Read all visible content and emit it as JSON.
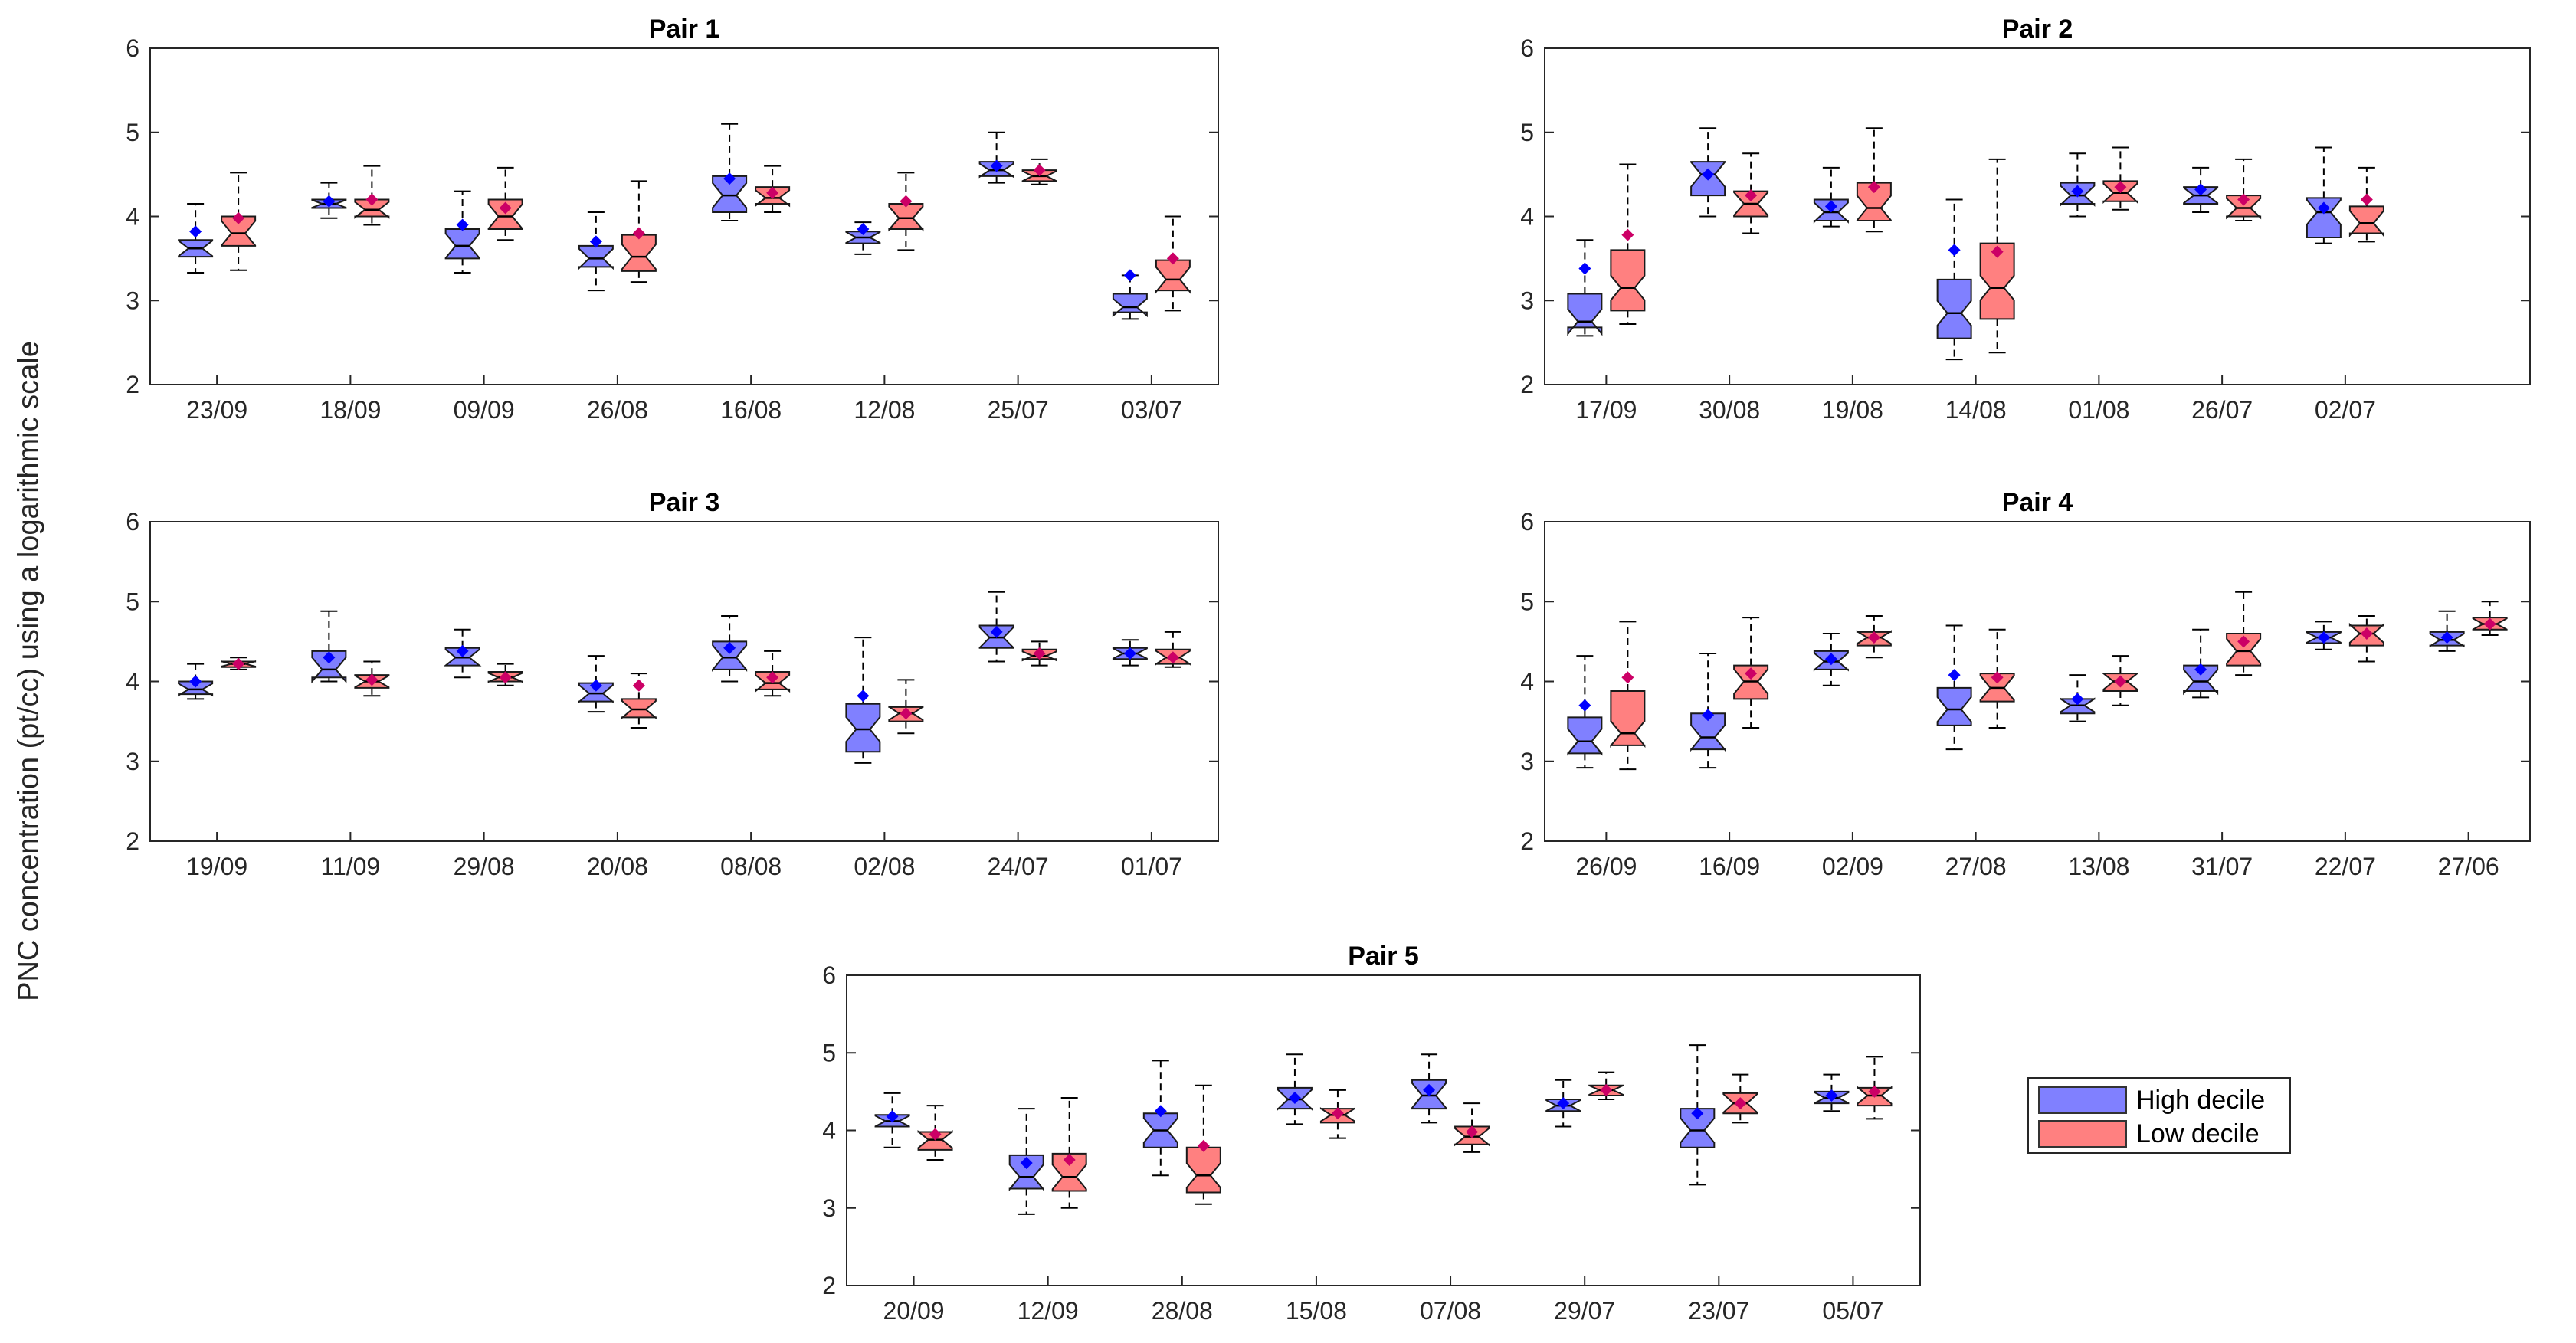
{
  "figure": {
    "ylabel": "PNC concentration (pt/cc) using a logarithmic scale"
  },
  "colors": {
    "high": "#8080ff",
    "low": "#ff8080",
    "high_mean": "#0000ff",
    "low_mean": "#cc0066"
  },
  "legend": {
    "high_label": "High decile",
    "low_label": "Low decile"
  },
  "chart_data": [
    {
      "type": "box",
      "title": "Pair 1",
      "ylim": [
        2,
        6
      ],
      "yticks": [
        "2",
        "3",
        "4",
        "5",
        "6"
      ],
      "categories": [
        "23/09",
        "18/09",
        "09/09",
        "26/08",
        "16/08",
        "12/08",
        "25/07",
        "03/07"
      ],
      "series": [
        {
          "name": "High decile",
          "boxes": [
            {
              "low": 3.33,
              "q1": 3.52,
              "median": 3.62,
              "q3": 3.72,
              "high": 4.15,
              "mean": 3.82
            },
            {
              "low": 3.98,
              "q1": 4.1,
              "median": 4.15,
              "q3": 4.2,
              "high": 4.4,
              "mean": 4.18
            },
            {
              "low": 3.33,
              "q1": 3.5,
              "median": 3.65,
              "q3": 3.85,
              "high": 4.3,
              "mean": 3.9
            },
            {
              "low": 3.12,
              "q1": 3.4,
              "median": 3.5,
              "q3": 3.65,
              "high": 4.05,
              "mean": 3.7
            },
            {
              "low": 3.95,
              "q1": 4.05,
              "median": 4.25,
              "q3": 4.48,
              "high": 5.1,
              "mean": 4.45
            },
            {
              "low": 3.55,
              "q1": 3.68,
              "median": 3.75,
              "q3": 3.82,
              "high": 3.93,
              "mean": 3.85
            },
            {
              "low": 4.4,
              "q1": 4.48,
              "median": 4.55,
              "q3": 4.65,
              "high": 5.0,
              "mean": 4.6
            },
            {
              "low": 2.78,
              "q1": 2.86,
              "median": 2.92,
              "q3": 3.08,
              "high": 3.3,
              "mean": 3.3
            }
          ]
        },
        {
          "name": "Low decile",
          "boxes": [
            {
              "low": 3.36,
              "q1": 3.65,
              "median": 3.8,
              "q3": 4.0,
              "high": 4.52,
              "mean": 3.98
            },
            {
              "low": 3.9,
              "q1": 4.0,
              "median": 4.08,
              "q3": 4.2,
              "high": 4.6,
              "mean": 4.2
            },
            {
              "low": 3.72,
              "q1": 3.85,
              "median": 4.0,
              "q3": 4.2,
              "high": 4.58,
              "mean": 4.1
            },
            {
              "low": 3.22,
              "q1": 3.35,
              "median": 3.52,
              "q3": 3.78,
              "high": 4.42,
              "mean": 3.8
            },
            {
              "low": 4.05,
              "q1": 4.15,
              "median": 4.22,
              "q3": 4.35,
              "high": 4.6,
              "mean": 4.28
            },
            {
              "low": 3.6,
              "q1": 3.85,
              "median": 3.98,
              "q3": 4.15,
              "high": 4.52,
              "mean": 4.18
            },
            {
              "low": 4.38,
              "q1": 4.42,
              "median": 4.48,
              "q3": 4.55,
              "high": 4.68,
              "mean": 4.55
            },
            {
              "low": 2.88,
              "q1": 3.12,
              "median": 3.25,
              "q3": 3.48,
              "high": 4.0,
              "mean": 3.5
            }
          ]
        }
      ]
    },
    {
      "type": "box",
      "title": "Pair 2",
      "ylim": [
        2,
        6
      ],
      "yticks": [
        "2",
        "3",
        "4",
        "5",
        "6"
      ],
      "categories": [
        "17/09",
        "30/08",
        "19/08",
        "14/08",
        "01/08",
        "26/07",
        "02/07"
      ],
      "series": [
        {
          "name": "High decile",
          "boxes": [
            {
              "low": 2.58,
              "q1": 2.68,
              "median": 2.75,
              "q3": 3.08,
              "high": 3.72,
              "mean": 3.38
            },
            {
              "low": 4.0,
              "q1": 4.25,
              "median": 4.5,
              "q3": 4.65,
              "high": 5.05,
              "mean": 4.5
            },
            {
              "low": 3.88,
              "q1": 3.95,
              "median": 4.05,
              "q3": 4.2,
              "high": 4.58,
              "mean": 4.12
            },
            {
              "low": 2.3,
              "q1": 2.55,
              "median": 2.85,
              "q3": 3.25,
              "high": 4.2,
              "mean": 3.6
            },
            {
              "low": 4.0,
              "q1": 4.15,
              "median": 4.25,
              "q3": 4.4,
              "high": 4.75,
              "mean": 4.3
            },
            {
              "low": 4.05,
              "q1": 4.15,
              "median": 4.25,
              "q3": 4.35,
              "high": 4.58,
              "mean": 4.32
            },
            {
              "low": 3.68,
              "q1": 3.75,
              "median": 4.05,
              "q3": 4.22,
              "high": 4.82,
              "mean": 4.1
            }
          ]
        },
        {
          "name": "Low decile",
          "boxes": [
            {
              "low": 2.72,
              "q1": 2.88,
              "median": 3.15,
              "q3": 3.6,
              "high": 4.62,
              "mean": 3.78
            },
            {
              "low": 3.8,
              "q1": 4.0,
              "median": 4.15,
              "q3": 4.3,
              "high": 4.75,
              "mean": 4.25
            },
            {
              "low": 3.82,
              "q1": 3.95,
              "median": 4.1,
              "q3": 4.4,
              "high": 5.05,
              "mean": 4.35
            },
            {
              "low": 2.38,
              "q1": 2.78,
              "median": 3.15,
              "q3": 3.68,
              "high": 4.68,
              "mean": 3.58
            },
            {
              "low": 4.08,
              "q1": 4.18,
              "median": 4.28,
              "q3": 4.42,
              "high": 4.82,
              "mean": 4.35
            },
            {
              "low": 3.95,
              "q1": 4.0,
              "median": 4.1,
              "q3": 4.25,
              "high": 4.68,
              "mean": 4.2
            },
            {
              "low": 3.7,
              "q1": 3.8,
              "median": 3.92,
              "q3": 4.12,
              "high": 4.58,
              "mean": 4.2
            }
          ]
        }
      ]
    },
    {
      "type": "box",
      "title": "Pair 3",
      "ylim": [
        2,
        6
      ],
      "yticks": [
        "2",
        "3",
        "4",
        "5",
        "6"
      ],
      "categories": [
        "19/09",
        "11/09",
        "29/08",
        "20/08",
        "08/08",
        "02/08",
        "24/07",
        "01/07"
      ],
      "series": [
        {
          "name": "High decile",
          "boxes": [
            {
              "low": 3.78,
              "q1": 3.84,
              "median": 3.9,
              "q3": 4.0,
              "high": 4.22,
              "mean": 4.0
            },
            {
              "low": 4.0,
              "q1": 4.05,
              "median": 4.15,
              "q3": 4.38,
              "high": 4.88,
              "mean": 4.3
            },
            {
              "low": 4.05,
              "q1": 4.2,
              "median": 4.3,
              "q3": 4.42,
              "high": 4.65,
              "mean": 4.38
            },
            {
              "low": 3.62,
              "q1": 3.75,
              "median": 3.85,
              "q3": 3.98,
              "high": 4.32,
              "mean": 3.95
            },
            {
              "low": 4.0,
              "q1": 4.15,
              "median": 4.3,
              "q3": 4.5,
              "high": 4.82,
              "mean": 4.42
            },
            {
              "low": 2.98,
              "q1": 3.12,
              "median": 3.4,
              "q3": 3.72,
              "high": 4.55,
              "mean": 3.82
            },
            {
              "low": 4.25,
              "q1": 4.42,
              "median": 4.55,
              "q3": 4.7,
              "high": 5.12,
              "mean": 4.62
            },
            {
              "low": 4.2,
              "q1": 4.28,
              "median": 4.35,
              "q3": 4.42,
              "high": 4.52,
              "mean": 4.35
            }
          ]
        },
        {
          "name": "Low decile",
          "boxes": [
            {
              "low": 4.15,
              "q1": 4.18,
              "median": 4.22,
              "q3": 4.25,
              "high": 4.3,
              "mean": 4.22
            },
            {
              "low": 3.82,
              "q1": 3.92,
              "median": 4.0,
              "q3": 4.08,
              "high": 4.25,
              "mean": 4.02
            },
            {
              "low": 3.95,
              "q1": 4.0,
              "median": 4.05,
              "q3": 4.12,
              "high": 4.22,
              "mean": 4.05
            },
            {
              "low": 3.42,
              "q1": 3.55,
              "median": 3.65,
              "q3": 3.78,
              "high": 4.1,
              "mean": 3.95
            },
            {
              "low": 3.82,
              "q1": 3.9,
              "median": 3.98,
              "q3": 4.12,
              "high": 4.38,
              "mean": 4.05
            },
            {
              "low": 3.35,
              "q1": 3.5,
              "median": 3.6,
              "q3": 3.68,
              "high": 4.02,
              "mean": 3.6
            },
            {
              "low": 4.2,
              "q1": 4.28,
              "median": 4.32,
              "q3": 4.4,
              "high": 4.5,
              "mean": 4.35
            },
            {
              "low": 4.18,
              "q1": 4.22,
              "median": 4.3,
              "q3": 4.4,
              "high": 4.62,
              "mean": 4.3
            }
          ]
        }
      ]
    },
    {
      "type": "box",
      "title": "Pair 4",
      "ylim": [
        2,
        6
      ],
      "yticks": [
        "2",
        "3",
        "4",
        "5",
        "6"
      ],
      "categories": [
        "26/09",
        "16/09",
        "02/09",
        "27/08",
        "13/08",
        "31/07",
        "22/07",
        "27/06"
      ],
      "series": [
        {
          "name": "High decile",
          "boxes": [
            {
              "low": 2.92,
              "q1": 3.1,
              "median": 3.25,
              "q3": 3.55,
              "high": 4.32,
              "mean": 3.7
            },
            {
              "low": 2.92,
              "q1": 3.15,
              "median": 3.3,
              "q3": 3.6,
              "high": 4.35,
              "mean": 3.58
            },
            {
              "low": 3.95,
              "q1": 4.15,
              "median": 4.25,
              "q3": 4.38,
              "high": 4.6,
              "mean": 4.28
            },
            {
              "low": 3.15,
              "q1": 3.45,
              "median": 3.65,
              "q3": 3.92,
              "high": 4.7,
              "mean": 4.08
            },
            {
              "low": 3.5,
              "q1": 3.6,
              "median": 3.7,
              "q3": 3.78,
              "high": 4.08,
              "mean": 3.78
            },
            {
              "low": 3.8,
              "q1": 3.88,
              "median": 4.0,
              "q3": 4.2,
              "high": 4.65,
              "mean": 4.15
            },
            {
              "low": 4.4,
              "q1": 4.48,
              "median": 4.55,
              "q3": 4.62,
              "high": 4.75,
              "mean": 4.55
            },
            {
              "low": 4.38,
              "q1": 4.45,
              "median": 4.52,
              "q3": 4.62,
              "high": 4.88,
              "mean": 4.55
            }
          ]
        },
        {
          "name": "Low decile",
          "boxes": [
            {
              "low": 2.9,
              "q1": 3.2,
              "median": 3.35,
              "q3": 3.88,
              "high": 4.75,
              "mean": 4.05
            },
            {
              "low": 3.42,
              "q1": 3.78,
              "median": 4.0,
              "q3": 4.2,
              "high": 4.8,
              "mean": 4.1
            },
            {
              "low": 4.3,
              "q1": 4.45,
              "median": 4.55,
              "q3": 4.62,
              "high": 4.82,
              "mean": 4.55
            },
            {
              "low": 3.42,
              "q1": 3.75,
              "median": 3.92,
              "q3": 4.1,
              "high": 4.65,
              "mean": 4.05
            },
            {
              "low": 3.7,
              "q1": 3.88,
              "median": 4.0,
              "q3": 4.1,
              "high": 4.32,
              "mean": 4.0
            },
            {
              "low": 4.08,
              "q1": 4.2,
              "median": 4.38,
              "q3": 4.6,
              "high": 5.12,
              "mean": 4.5
            },
            {
              "low": 4.25,
              "q1": 4.45,
              "median": 4.6,
              "q3": 4.7,
              "high": 4.82,
              "mean": 4.6
            },
            {
              "low": 4.58,
              "q1": 4.65,
              "median": 4.72,
              "q3": 4.8,
              "high": 5.0,
              "mean": 4.72
            }
          ]
        }
      ]
    },
    {
      "type": "box",
      "title": "Pair 5",
      "ylim": [
        2,
        6
      ],
      "yticks": [
        "2",
        "3",
        "4",
        "5",
        "6"
      ],
      "categories": [
        "20/09",
        "12/09",
        "28/08",
        "15/08",
        "07/08",
        "29/07",
        "23/07",
        "05/07"
      ],
      "series": [
        {
          "name": "High decile",
          "boxes": [
            {
              "low": 3.78,
              "q1": 4.05,
              "median": 4.12,
              "q3": 4.2,
              "high": 4.48,
              "mean": 4.18
            },
            {
              "low": 2.92,
              "q1": 3.25,
              "median": 3.4,
              "q3": 3.68,
              "high": 4.28,
              "mean": 3.58
            },
            {
              "low": 3.42,
              "q1": 3.78,
              "median": 4.0,
              "q3": 4.22,
              "high": 4.9,
              "mean": 4.25
            },
            {
              "low": 4.08,
              "q1": 4.28,
              "median": 4.4,
              "q3": 4.55,
              "high": 4.98,
              "mean": 4.42
            },
            {
              "low": 4.1,
              "q1": 4.28,
              "median": 4.45,
              "q3": 4.65,
              "high": 4.98,
              "mean": 4.52
            },
            {
              "low": 4.05,
              "q1": 4.25,
              "median": 4.32,
              "q3": 4.4,
              "high": 4.65,
              "mean": 4.35
            },
            {
              "low": 3.3,
              "q1": 3.78,
              "median": 4.0,
              "q3": 4.28,
              "high": 5.1,
              "mean": 4.22
            },
            {
              "low": 4.25,
              "q1": 4.35,
              "median": 4.42,
              "q3": 4.5,
              "high": 4.72,
              "mean": 4.45
            }
          ]
        },
        {
          "name": "Low decile",
          "boxes": [
            {
              "low": 3.62,
              "q1": 3.75,
              "median": 3.88,
              "q3": 3.98,
              "high": 4.32,
              "mean": 3.95
            },
            {
              "low": 3.0,
              "q1": 3.22,
              "median": 3.4,
              "q3": 3.7,
              "high": 4.42,
              "mean": 3.62
            },
            {
              "low": 3.05,
              "q1": 3.2,
              "median": 3.42,
              "q3": 3.78,
              "high": 4.58,
              "mean": 3.8
            },
            {
              "low": 3.9,
              "q1": 4.1,
              "median": 4.2,
              "q3": 4.28,
              "high": 4.52,
              "mean": 4.22
            },
            {
              "low": 3.72,
              "q1": 3.82,
              "median": 3.92,
              "q3": 4.05,
              "high": 4.35,
              "mean": 3.98
            },
            {
              "low": 4.4,
              "q1": 4.45,
              "median": 4.52,
              "q3": 4.58,
              "high": 4.75,
              "mean": 4.52
            },
            {
              "low": 4.1,
              "q1": 4.22,
              "median": 4.35,
              "q3": 4.48,
              "high": 4.72,
              "mean": 4.35
            },
            {
              "low": 4.15,
              "q1": 4.32,
              "median": 4.45,
              "q3": 4.55,
              "high": 4.95,
              "mean": 4.5
            }
          ]
        }
      ]
    }
  ]
}
